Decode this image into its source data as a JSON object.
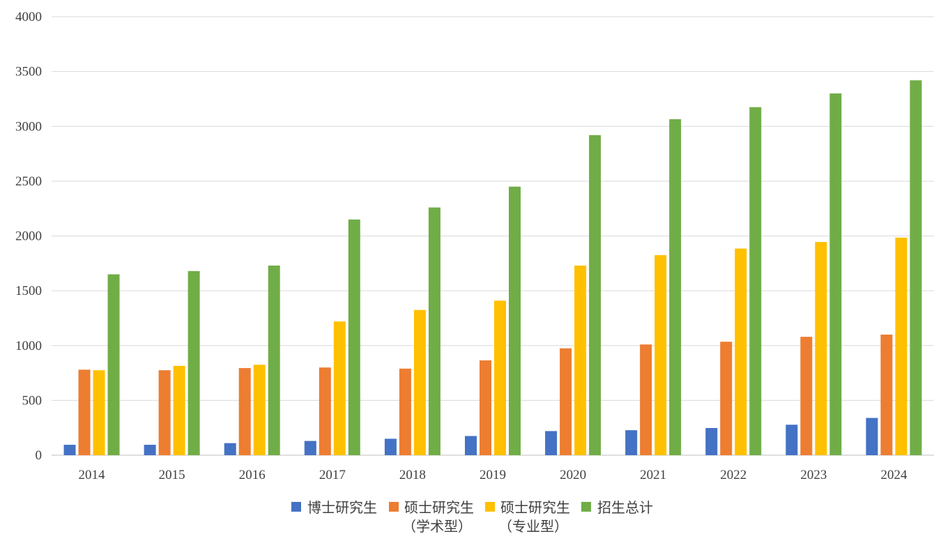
{
  "chart_data": {
    "type": "bar",
    "title": "",
    "xlabel": "",
    "ylabel": "",
    "ylim": [
      0,
      4000
    ],
    "yticks": [
      0,
      500,
      1000,
      1500,
      2000,
      2500,
      3000,
      3500,
      4000
    ],
    "grid": true,
    "legend_position": "bottom",
    "categories": [
      "2014",
      "2015",
      "2016",
      "2017",
      "2018",
      "2019",
      "2020",
      "2021",
      "2022",
      "2023",
      "2024"
    ],
    "series": [
      {
        "name": "博士研究生",
        "name_line2": "",
        "color": "#4472C4",
        "values": [
          95,
          95,
          110,
          130,
          150,
          175,
          220,
          228,
          248,
          278,
          340
        ]
      },
      {
        "name": "硕士研究生",
        "name_line2": "（学术型）",
        "color": "#ED7D31",
        "values": [
          780,
          775,
          795,
          800,
          790,
          865,
          975,
          1010,
          1035,
          1080,
          1100
        ]
      },
      {
        "name": "硕士研究生",
        "name_line2": "（专业型）",
        "color": "#FFC000",
        "values": [
          775,
          815,
          825,
          1220,
          1325,
          1410,
          1730,
          1825,
          1885,
          1945,
          1985
        ]
      },
      {
        "name": "招生总计",
        "name_line2": "",
        "color": "#70AD47",
        "values": [
          1650,
          1680,
          1730,
          2150,
          2260,
          2450,
          2920,
          3065,
          3175,
          3300,
          3420
        ]
      }
    ]
  }
}
